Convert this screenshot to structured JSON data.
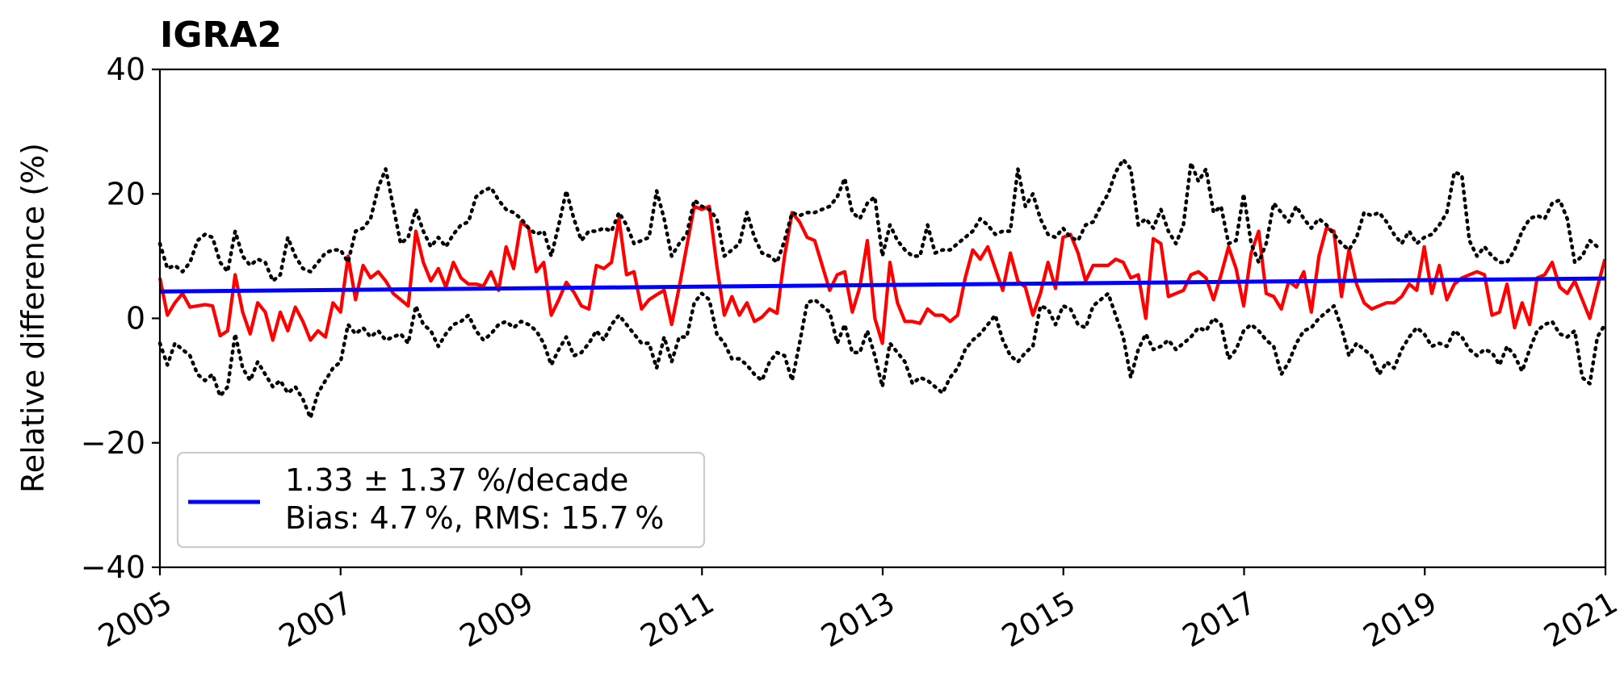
{
  "chart_data": {
    "type": "line",
    "title": "IGRA2",
    "xlabel": "",
    "ylabel": "Relative difference (%)",
    "xlim": [
      2005.0,
      2021.0
    ],
    "ylim": [
      -40,
      40
    ],
    "x_ticks": [
      "2005",
      "2007",
      "2009",
      "2011",
      "2013",
      "2015",
      "2017",
      "2019",
      "2021"
    ],
    "y_ticks": [
      "40",
      "20",
      "0",
      "−20",
      "−40"
    ],
    "x_start": 2005.0,
    "x_step": 0.0833,
    "grid": false,
    "legend": {
      "position": "bottom-left",
      "line1": "1.33 ± 1.37 %/decade",
      "line2": "Bias: 4.7 %, RMS: 15.7 %"
    },
    "series": [
      {
        "role": "mean",
        "color": "#ff0000",
        "style": "solid",
        "values": [
          6.5,
          0.5,
          2.5,
          4.0,
          1.8,
          2.0,
          2.2,
          2.0,
          -2.8,
          -2.0,
          7.0,
          1.0,
          -2.5,
          2.5,
          1.0,
          -3.5,
          1.0,
          -2.0,
          1.8,
          -0.5,
          -3.5,
          -2.0,
          -3.0,
          2.5,
          1.0,
          10.0,
          3.0,
          8.5,
          6.5,
          7.5,
          6.0,
          4.0,
          3.0,
          2.0,
          14.0,
          9.0,
          6.0,
          8.0,
          5.0,
          9.0,
          6.5,
          5.5,
          5.5,
          5.2,
          7.5,
          4.5,
          11.5,
          8.0,
          15.5,
          14.5,
          7.5,
          9.0,
          0.5,
          3.0,
          5.8,
          4.2,
          2.0,
          1.5,
          8.5,
          8.0,
          9.0,
          16.0,
          7.0,
          7.5,
          1.5,
          3.0,
          3.8,
          4.5,
          -1.0,
          5.0,
          11.5,
          18.0,
          17.5,
          18.0,
          8.5,
          0.5,
          3.5,
          0.5,
          2.5,
          -0.5,
          0.2,
          1.5,
          0.8,
          10.0,
          17.0,
          15.5,
          13.0,
          12.5,
          8.5,
          4.5,
          7.0,
          7.5,
          1.0,
          5.0,
          12.5,
          0.0,
          -4.0,
          9.0,
          2.5,
          -0.5,
          -0.5,
          -0.8,
          1.5,
          0.5,
          0.5,
          -0.5,
          0.5,
          6.5,
          11.0,
          9.5,
          11.5,
          8.0,
          4.5,
          10.5,
          6.0,
          5.0,
          0.5,
          4.0,
          9.0,
          4.8,
          13.0,
          13.5,
          10.5,
          6.0,
          8.5,
          8.5,
          8.5,
          9.5,
          9.0,
          6.5,
          7.0,
          0.0,
          12.8,
          12.0,
          3.5,
          4.0,
          4.5,
          7.0,
          7.5,
          6.5,
          3.0,
          7.0,
          11.5,
          8.0,
          2.0,
          10.5,
          14.0,
          4.0,
          3.5,
          1.5,
          6.0,
          5.0,
          7.5,
          1.0,
          10.0,
          14.5,
          14.0,
          3.5,
          11.0,
          5.5,
          2.5,
          1.5,
          2.0,
          2.5,
          2.5,
          3.5,
          5.5,
          4.5,
          11.5,
          4.0,
          8.5,
          3.0,
          5.5,
          6.5,
          7.0,
          7.5,
          7.0,
          0.5,
          1.0,
          5.5,
          -1.5,
          2.5,
          -1.0,
          6.5,
          7.0,
          9.0,
          5.0,
          4.0,
          6.0,
          3.0,
          0.0,
          5.0,
          9.5
        ]
      },
      {
        "role": "upper-bound",
        "color": "#000000",
        "style": "dotted",
        "values": [
          12.0,
          8.0,
          8.5,
          7.5,
          9.0,
          12.5,
          13.5,
          13.0,
          9.0,
          7.5,
          14.0,
          10.0,
          8.5,
          9.5,
          9.0,
          6.0,
          7.0,
          13.0,
          10.0,
          8.0,
          7.5,
          9.0,
          10.5,
          11.0,
          11.0,
          9.0,
          14.0,
          14.5,
          16.0,
          21.0,
          24.0,
          18.0,
          12.0,
          13.0,
          17.5,
          14.0,
          11.5,
          13.0,
          11.5,
          13.5,
          15.0,
          15.5,
          19.5,
          20.5,
          21.0,
          19.0,
          17.5,
          17.0,
          16.0,
          14.5,
          13.5,
          14.0,
          10.0,
          15.0,
          20.5,
          16.0,
          12.5,
          14.0,
          14.0,
          14.5,
          14.0,
          17.0,
          15.0,
          12.0,
          12.5,
          13.0,
          20.5,
          16.0,
          10.0,
          12.0,
          13.5,
          19.0,
          18.0,
          17.5,
          16.0,
          10.0,
          11.0,
          12.0,
          17.0,
          13.0,
          10.5,
          10.0,
          9.0,
          12.5,
          17.0,
          16.5,
          17.0,
          17.0,
          17.5,
          18.0,
          19.5,
          22.5,
          17.0,
          16.0,
          18.5,
          19.5,
          10.0,
          15.0,
          12.5,
          11.0,
          10.0,
          10.0,
          15.0,
          10.5,
          11.0,
          11.0,
          12.0,
          13.0,
          14.0,
          16.0,
          15.0,
          13.5,
          14.0,
          14.0,
          24.0,
          18.0,
          20.0,
          16.0,
          13.5,
          13.0,
          14.5,
          13.0,
          12.5,
          15.0,
          15.5,
          18.0,
          20.0,
          23.5,
          25.5,
          24.0,
          15.0,
          16.0,
          14.5,
          17.5,
          14.0,
          12.0,
          15.0,
          25.0,
          22.0,
          24.0,
          17.0,
          18.0,
          12.0,
          12.5,
          20.0,
          12.0,
          9.0,
          12.0,
          18.5,
          17.0,
          15.5,
          18.0,
          16.0,
          14.5,
          16.0,
          15.0,
          13.5,
          12.0,
          11.0,
          13.0,
          17.0,
          16.5,
          17.0,
          15.5,
          13.5,
          12.0,
          14.0,
          12.0,
          13.0,
          13.5,
          15.0,
          17.0,
          23.5,
          23.0,
          12.5,
          10.0,
          11.5,
          10.0,
          9.0,
          9.0,
          11.0,
          14.0,
          16.0,
          16.5,
          16.0,
          18.5,
          19.0,
          16.0,
          9.0,
          10.0,
          12.5,
          11.5
        ]
      },
      {
        "role": "lower-bound",
        "color": "#000000",
        "style": "dotted",
        "values": [
          -4.0,
          -7.5,
          -4.0,
          -5.0,
          -6.0,
          -9.0,
          -10.0,
          -9.0,
          -12.5,
          -11.0,
          -2.5,
          -8.0,
          -10.0,
          -7.0,
          -9.0,
          -11.0,
          -10.0,
          -12.0,
          -11.0,
          -13.0,
          -16.0,
          -12.0,
          -10.0,
          -8.0,
          -7.0,
          -1.0,
          -2.5,
          -1.5,
          -3.0,
          -2.0,
          -3.5,
          -3.0,
          -2.5,
          -4.0,
          2.0,
          -1.0,
          -2.0,
          -4.5,
          -2.5,
          -1.0,
          -0.5,
          0.5,
          -2.0,
          -3.5,
          -2.5,
          -1.0,
          -0.5,
          -1.5,
          -0.5,
          -1.0,
          -2.0,
          -4.0,
          -7.5,
          -5.0,
          -3.0,
          -6.0,
          -5.5,
          -4.0,
          -2.0,
          -3.5,
          -1.0,
          0.5,
          -1.0,
          -2.5,
          -4.0,
          -4.0,
          -8.0,
          -3.0,
          -7.0,
          -3.0,
          -3.0,
          2.5,
          4.0,
          3.0,
          -2.5,
          -4.0,
          -6.5,
          -6.5,
          -7.5,
          -9.0,
          -10.0,
          -7.0,
          -5.5,
          -6.0,
          -10.0,
          -4.0,
          2.5,
          3.0,
          2.0,
          1.0,
          -4.0,
          -1.0,
          -5.5,
          -5.5,
          -2.0,
          -6.0,
          -11.0,
          -4.0,
          -5.5,
          -7.0,
          -10.5,
          -9.5,
          -10.0,
          -11.0,
          -12.0,
          -9.5,
          -8.0,
          -5.0,
          -3.5,
          -2.5,
          -1.0,
          0.5,
          -3.5,
          -6.0,
          -7.0,
          -5.5,
          -4.5,
          2.0,
          1.5,
          -1.0,
          2.0,
          1.5,
          -1.0,
          -1.5,
          2.0,
          3.0,
          4.0,
          0.5,
          -3.0,
          -9.5,
          -5.0,
          -2.5,
          -5.0,
          -4.5,
          -3.5,
          -5.0,
          -4.0,
          -3.0,
          -1.5,
          -2.0,
          0.0,
          -1.0,
          -6.5,
          -5.0,
          -2.0,
          -1.0,
          -2.0,
          -3.5,
          -4.5,
          -9.0,
          -7.0,
          -4.0,
          -2.0,
          -1.5,
          0.0,
          1.0,
          2.0,
          -1.5,
          -6.0,
          -4.0,
          -5.0,
          -6.0,
          -9.0,
          -7.0,
          -8.0,
          -5.0,
          -3.0,
          -1.5,
          -2.5,
          -4.5,
          -4.0,
          -4.5,
          -2.0,
          -3.0,
          -5.0,
          -6.0,
          -5.0,
          -5.5,
          -7.5,
          -4.5,
          -6.0,
          -8.5,
          -5.0,
          -2.0,
          -1.0,
          -0.5,
          -2.5,
          -3.0,
          -2.0,
          -9.5,
          -10.5,
          -3.0,
          -1.0
        ]
      },
      {
        "role": "trend",
        "color": "#0000ff",
        "style": "solid",
        "x": [
          2005.0,
          2021.0
        ],
        "values": [
          4.3,
          6.4
        ]
      }
    ]
  }
}
